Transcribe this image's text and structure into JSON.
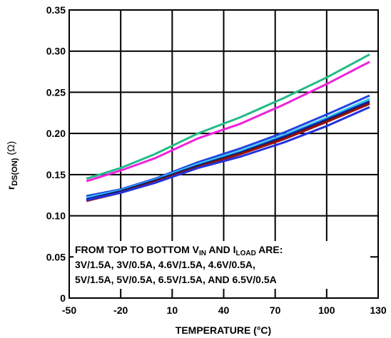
{
  "chart_data": {
    "type": "line",
    "xlabel": "TEMPERATURE (°C)",
    "ylabel": {
      "main": "r",
      "sub": "DS(ON)",
      "unit": " (Ω)"
    },
    "xlim": [
      -50,
      130
    ],
    "ylim": [
      0,
      0.35
    ],
    "x_ticks": [
      -50,
      -20,
      10,
      40,
      70,
      100,
      130
    ],
    "x_tick_labels": [
      "-50",
      "-20",
      "10",
      "40",
      "70",
      "100",
      "130"
    ],
    "y_ticks": [
      0,
      0.05,
      0.1,
      0.15,
      0.2,
      0.25,
      0.3,
      0.35
    ],
    "y_tick_labels": [
      "0",
      "0.05",
      "0.10",
      "0.15",
      "0.20",
      "0.25",
      "0.30",
      "0.35"
    ],
    "grid": true,
    "series": [
      {
        "color": "#22bb88",
        "x": [
          -40,
          -20,
          0,
          25,
          50,
          75,
          100,
          125
        ],
        "y": [
          0.145,
          0.158,
          0.175,
          0.2,
          0.22,
          0.243,
          0.268,
          0.296
        ]
      },
      {
        "color": "#ee22dd",
        "x": [
          -40,
          -20,
          0,
          25,
          50,
          75,
          100,
          125
        ],
        "y": [
          0.142,
          0.155,
          0.17,
          0.194,
          0.212,
          0.235,
          0.26,
          0.287
        ]
      },
      {
        "color": "#2244dd",
        "x": [
          -40,
          -20,
          0,
          25,
          50,
          75,
          100,
          125
        ],
        "y": [
          0.124,
          0.132,
          0.145,
          0.165,
          0.182,
          0.201,
          0.223,
          0.246
        ]
      },
      {
        "color": "#33ccee",
        "x": [
          -40,
          -20,
          0,
          25,
          50,
          75,
          100,
          125
        ],
        "y": [
          0.122,
          0.131,
          0.144,
          0.163,
          0.179,
          0.198,
          0.219,
          0.242
        ]
      },
      {
        "color": "#1122bb",
        "x": [
          -40,
          -20,
          0,
          25,
          50,
          75,
          100,
          125
        ],
        "y": [
          0.12,
          0.13,
          0.143,
          0.161,
          0.177,
          0.196,
          0.217,
          0.239
        ]
      },
      {
        "color": "#222222",
        "x": [
          -40,
          -20,
          0,
          25,
          50,
          75,
          100,
          125
        ],
        "y": [
          0.119,
          0.129,
          0.142,
          0.16,
          0.176,
          0.194,
          0.215,
          0.237
        ]
      },
      {
        "color": "#991111",
        "x": [
          -40,
          -20,
          0,
          25,
          50,
          75,
          100,
          125
        ],
        "y": [
          0.118,
          0.128,
          0.141,
          0.159,
          0.175,
          0.193,
          0.214,
          0.236
        ]
      },
      {
        "color": "#2233dd",
        "x": [
          -40,
          -20,
          0,
          25,
          50,
          75,
          100,
          125
        ],
        "y": [
          0.119,
          0.128,
          0.14,
          0.158,
          0.172,
          0.189,
          0.209,
          0.232
        ]
      }
    ],
    "annotation": {
      "line1_before_vin": "FROM TOP TO BOTTOM V",
      "vin_sub": "IN",
      "line1_middle": " AND I",
      "iload_sub": "LOAD",
      "line1_after": " ARE:",
      "line2": "3V/1.5A, 3V/0.5A, 4.6V/1.5A, 4.6V/0.5A,",
      "line3": "5V/1.5A, 5V/0.5A, 6.5V/1.5A, AND 6.5V/0.5A"
    }
  }
}
